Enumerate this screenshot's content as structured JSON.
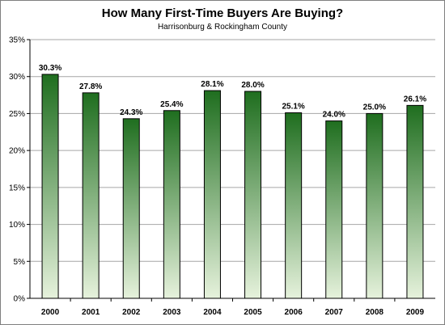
{
  "chart_data": {
    "type": "bar",
    "title": "How Many First-Time Buyers Are Buying?",
    "subtitle": "Harrisonburg & Rockingham County",
    "categories": [
      "2000",
      "2001",
      "2002",
      "2003",
      "2004",
      "2005",
      "2006",
      "2007",
      "2008",
      "2009"
    ],
    "values": [
      30.3,
      27.8,
      24.3,
      25.4,
      28.1,
      28.0,
      25.1,
      24.0,
      25.0,
      26.1
    ],
    "data_labels": [
      "30.3%",
      "27.8%",
      "24.3%",
      "25.4%",
      "28.1%",
      "28.0%",
      "25.1%",
      "24.0%",
      "25.0%",
      "26.1%"
    ],
    "yticks": [
      "0%",
      "5%",
      "10%",
      "15%",
      "20%",
      "25%",
      "30%",
      "35%"
    ],
    "ylim": [
      0,
      35
    ],
    "grid": true,
    "colors": {
      "bar_top": "#1f6e1f",
      "bar_bottom": "#e6f2dc",
      "grid": "#a6a6a6"
    }
  }
}
